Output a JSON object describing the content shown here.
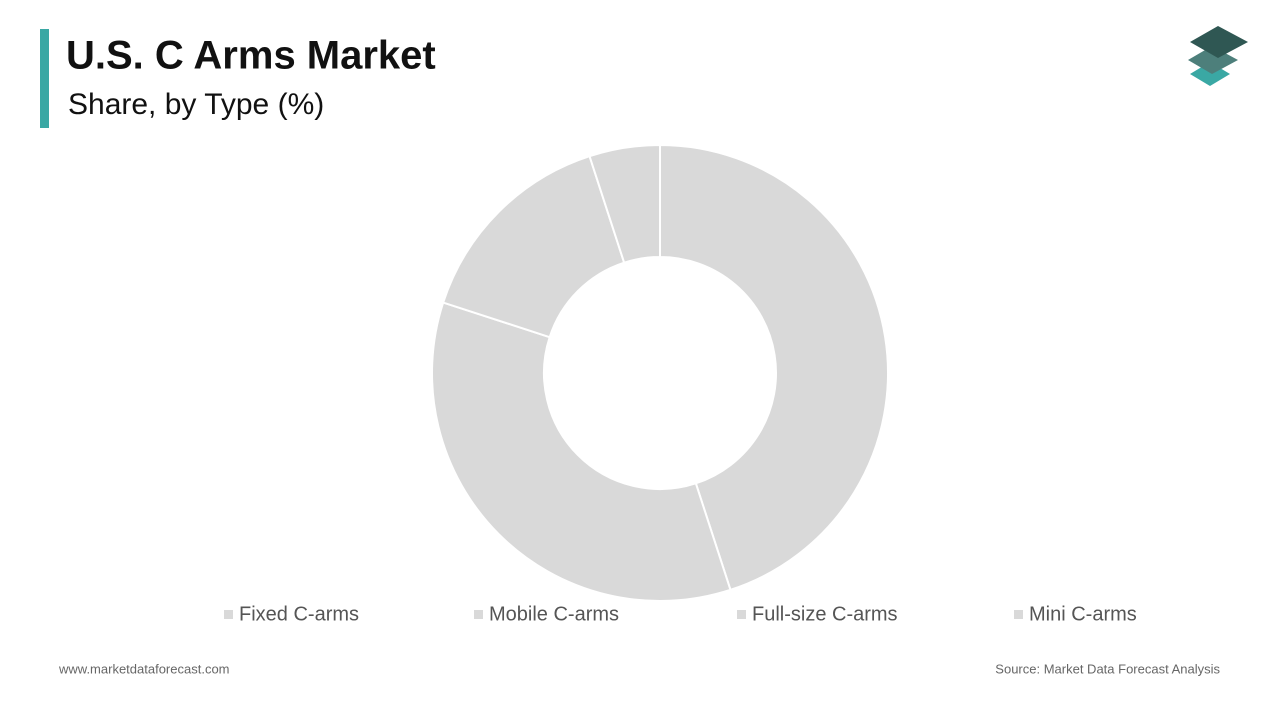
{
  "chart_data": {
    "type": "pie",
    "title": "U.S. C Arms Market",
    "subtitle": "Share, by Type (%)",
    "categories": [
      "Fixed C-arms",
      "Mobile C-arms",
      "Full-size C-arms",
      "Mini C-arms"
    ],
    "values": [
      45,
      35,
      15,
      5
    ],
    "color": "#d9d9d9",
    "legend": "bottom"
  },
  "footer": {
    "website": "www.marketdataforecast.com",
    "source": "Source: Market Data Forecast Analysis"
  }
}
